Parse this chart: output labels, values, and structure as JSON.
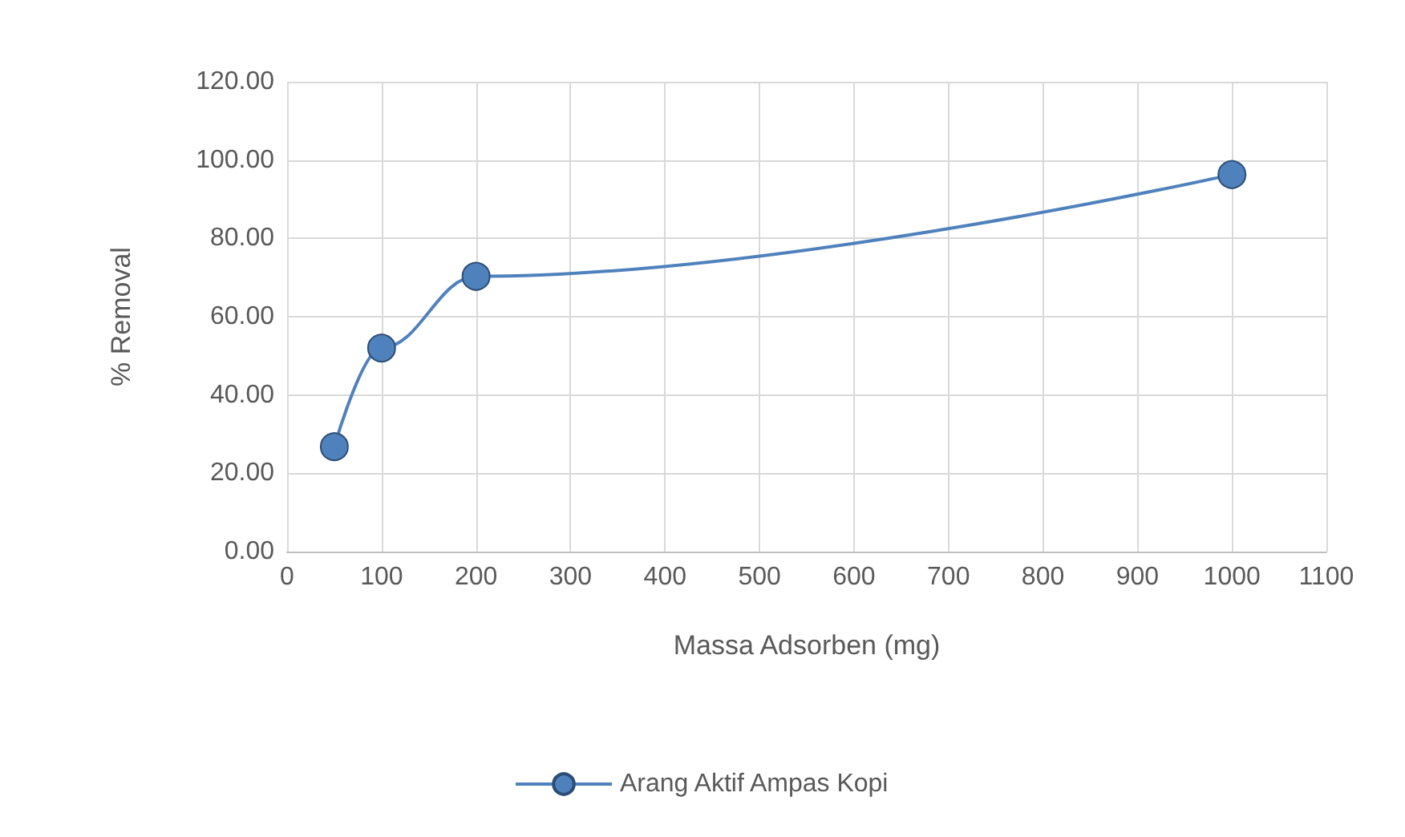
{
  "chart_data": {
    "type": "line",
    "xlabel": "Massa Adsorben (mg)",
    "ylabel": "% Removal",
    "x": [
      50,
      100,
      200,
      1000
    ],
    "series": [
      {
        "name": "Arang Aktif Ampas Kopi",
        "color": "#4f81bd",
        "values": [
          26.8,
          52.0,
          70.3,
          96.3
        ]
      }
    ],
    "xlim": [
      0,
      1100
    ],
    "xticks": [
      0,
      100,
      200,
      300,
      400,
      500,
      600,
      700,
      800,
      900,
      1000,
      1100
    ],
    "ylim": [
      0,
      120
    ],
    "yticks": [
      {
        "value": 0,
        "label": "0.00"
      },
      {
        "value": 20,
        "label": "20.00"
      },
      {
        "value": 40,
        "label": "40.00"
      },
      {
        "value": 60,
        "label": "60.00"
      },
      {
        "value": 80,
        "label": "80.00"
      },
      {
        "value": 100,
        "label": "100.00"
      },
      {
        "value": 120,
        "label": "120.00"
      }
    ],
    "grid": true,
    "legend": "bottom",
    "marker": "circle",
    "line_style": "solid"
  }
}
